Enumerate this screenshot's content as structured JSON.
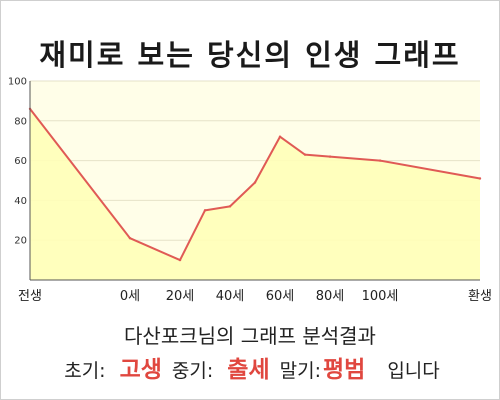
{
  "title": "재미로 보는 당신의 인생 그래프",
  "subtitle": "다산포크님의 그래프 분석결과",
  "summary": {
    "early_label": "초기:",
    "early_value": "고생",
    "mid_label": "중기:",
    "mid_value": "출세",
    "late_label": "말기:",
    "late_value": "평범",
    "suffix": "입니다"
  },
  "colors": {
    "line": "#e05a55",
    "fill": "#ffffb8",
    "plot_bg": "#fffee8",
    "grid": "#e6e2c8",
    "accent": "#e0473f"
  },
  "chart_data": {
    "type": "area",
    "title": "재미로 보는 당신의 인생 그래프",
    "xlabel": "",
    "ylabel": "",
    "ylim": [
      0,
      100
    ],
    "yticks": [
      20,
      40,
      60,
      80,
      100
    ],
    "grid": true,
    "x_categories": [
      "전생",
      "0세",
      "20세",
      "40세",
      "60세",
      "80세",
      "100세",
      "환생"
    ],
    "points": [
      {
        "x": "전생",
        "y": 86
      },
      {
        "x": "0세",
        "y": 21
      },
      {
        "x": "20세",
        "y": 10
      },
      {
        "x": "30세",
        "y": 35
      },
      {
        "x": "40세",
        "y": 37
      },
      {
        "x": "50세",
        "y": 49
      },
      {
        "x": "60세",
        "y": 72
      },
      {
        "x": "70세",
        "y": 63
      },
      {
        "x": "80세",
        "y": 62
      },
      {
        "x": "100세",
        "y": 60
      },
      {
        "x": "환생",
        "y": 51
      }
    ]
  }
}
